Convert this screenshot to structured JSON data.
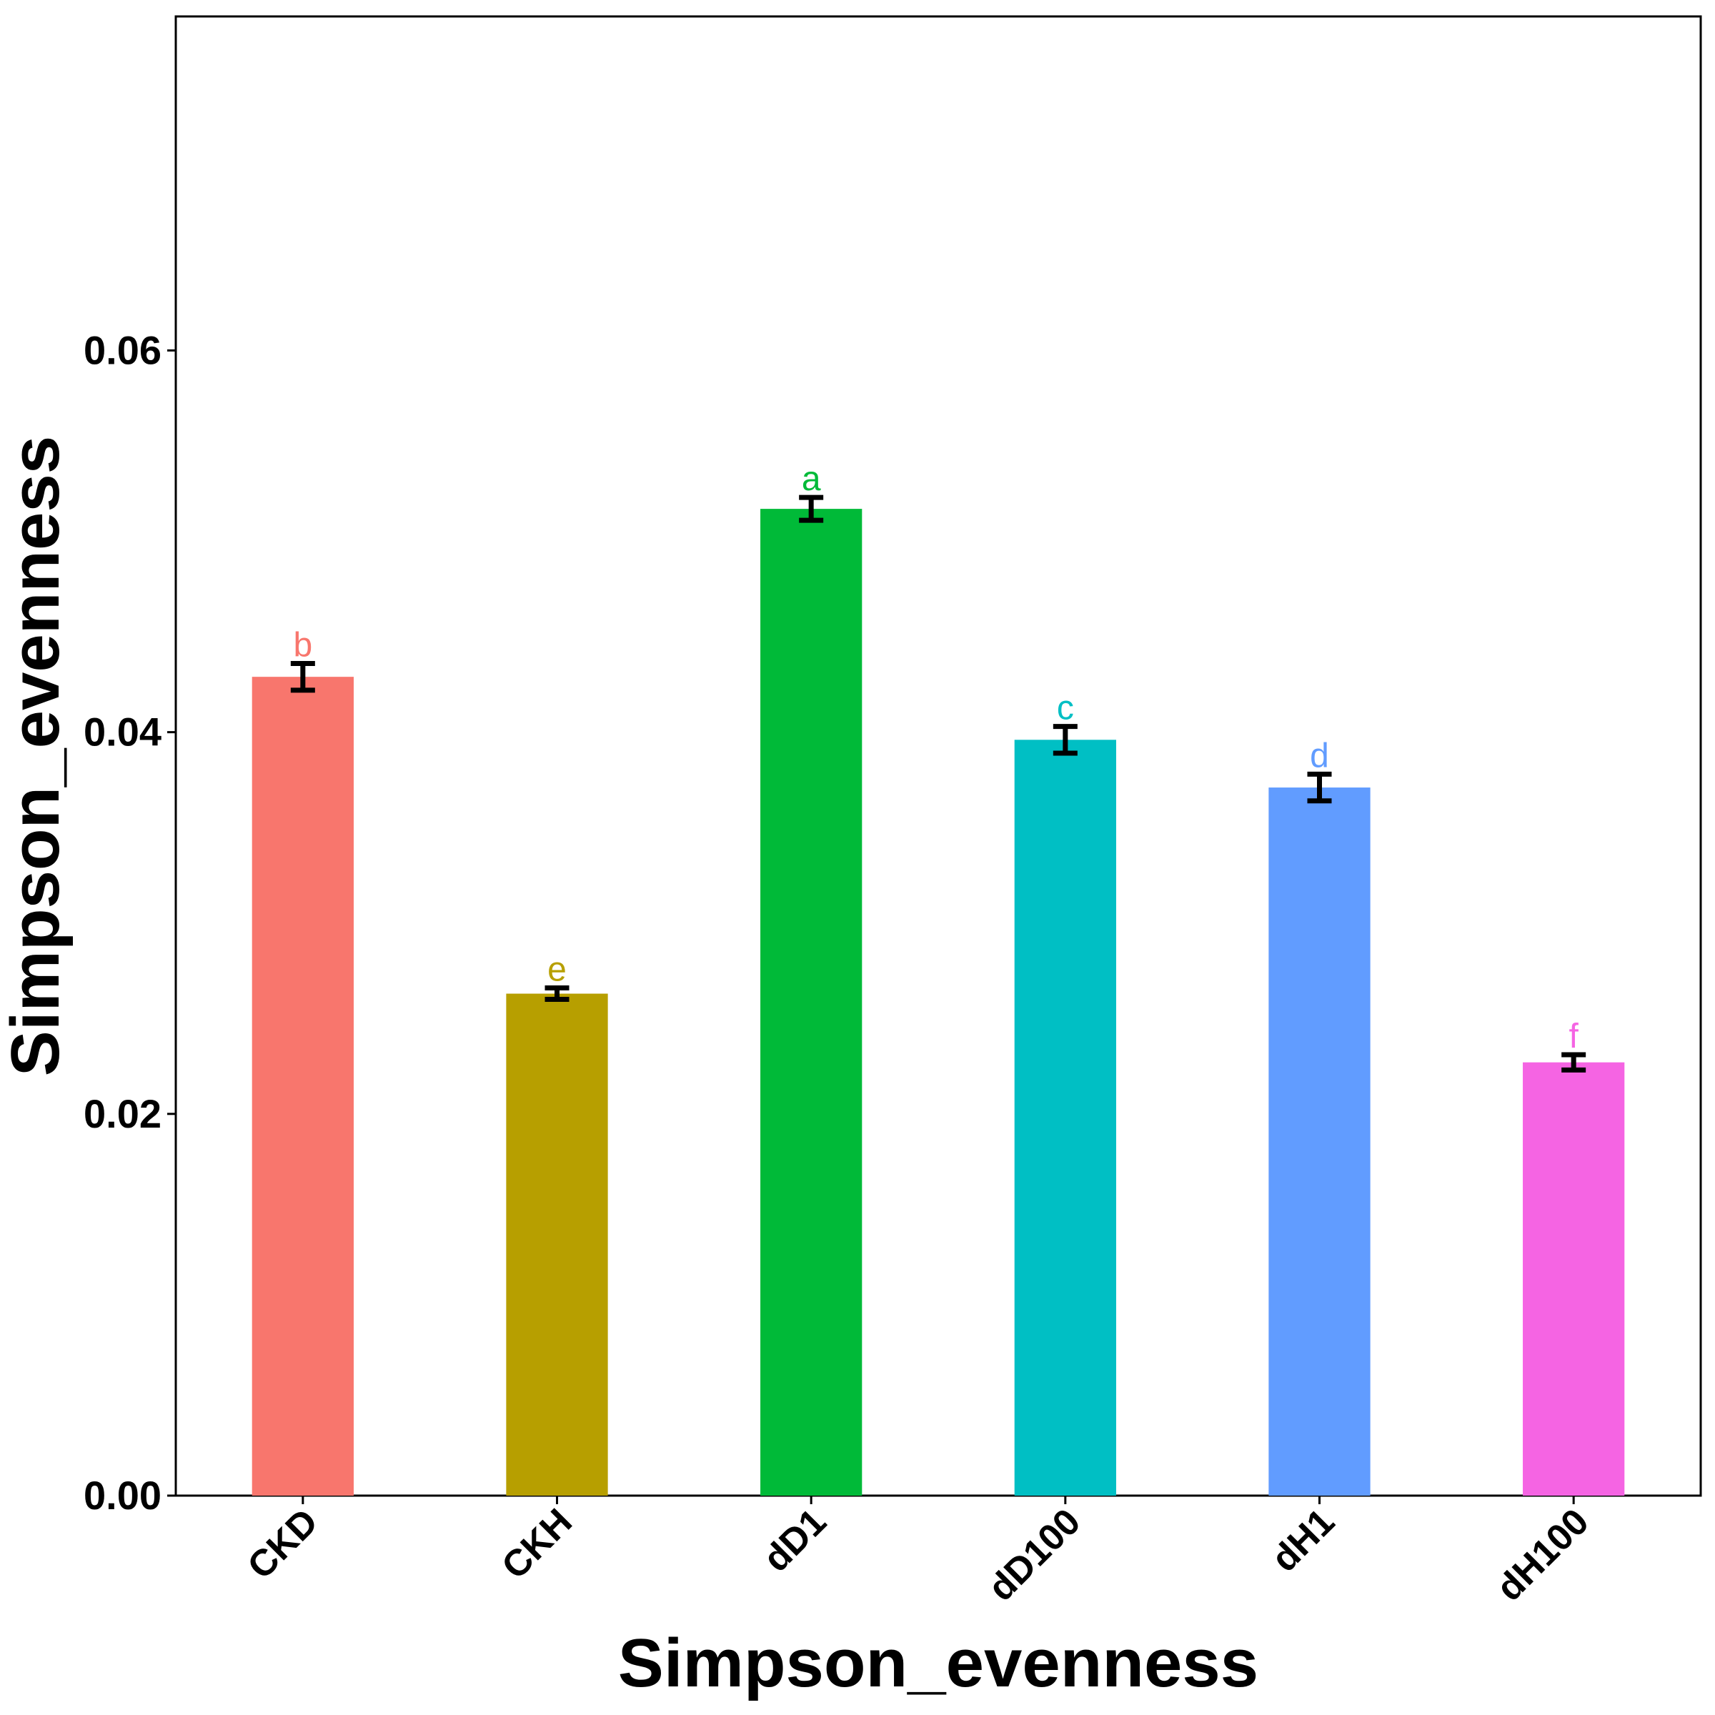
{
  "chart_data": {
    "type": "bar",
    "title": "",
    "xlabel": "Simpson_evenness",
    "ylabel": "Simpson_evenness",
    "ylim": [
      0,
      0.0775
    ],
    "yticks": [
      0.0,
      0.02,
      0.04,
      0.06
    ],
    "ytick_labels": [
      "0.00",
      "0.02",
      "0.04",
      "0.06"
    ],
    "categories": [
      "CKD",
      "CKH",
      "dD1",
      "dD100",
      "dH1",
      "dH100"
    ],
    "values": [
      0.0429,
      0.0263,
      0.0517,
      0.0396,
      0.0371,
      0.0227
    ],
    "errors": [
      0.0007,
      0.0003,
      0.0006,
      0.0007,
      0.0007,
      0.0004
    ],
    "significance": [
      "b",
      "e",
      "a",
      "c",
      "d",
      "f"
    ],
    "colors": [
      "#F8766D",
      "#B79F00",
      "#00BA38",
      "#00BFC4",
      "#619CFF",
      "#F564E3"
    ],
    "grid": false,
    "legend": "none"
  }
}
